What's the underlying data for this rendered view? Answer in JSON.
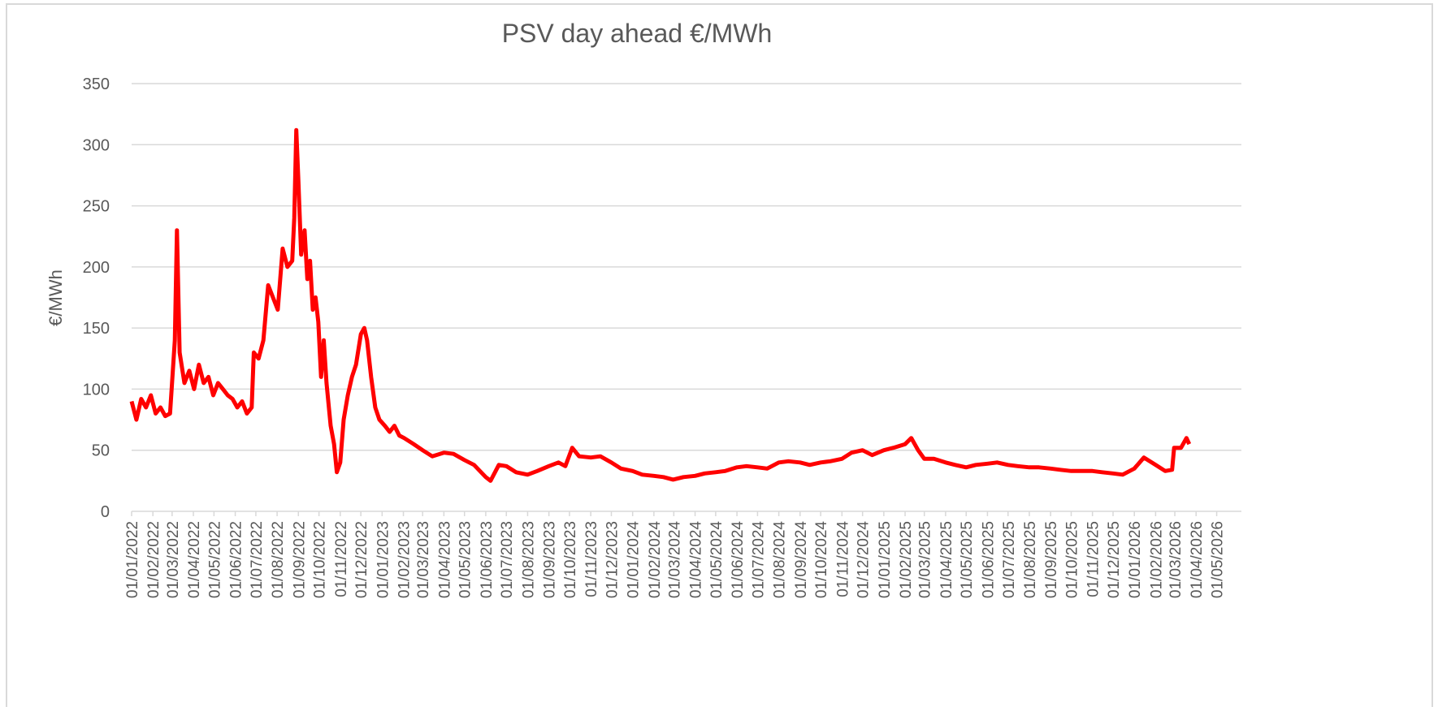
{
  "chart_data": {
    "type": "line",
    "title": "PSV day ahead €/MWh",
    "y_label": "€/MWh",
    "x": [
      "01/01/2022",
      "08/01/2022",
      "15/01/2022",
      "22/01/2022",
      "29/01/2022",
      "05/02/2022",
      "12/02/2022",
      "19/02/2022",
      "26/02/2022",
      "05/03/2022",
      "08/03/2022",
      "12/03/2022",
      "19/03/2022",
      "26/03/2022",
      "02/04/2022",
      "09/04/2022",
      "16/04/2022",
      "23/04/2022",
      "30/04/2022",
      "07/05/2022",
      "14/05/2022",
      "21/05/2022",
      "28/05/2022",
      "04/06/2022",
      "11/06/2022",
      "18/06/2022",
      "25/06/2022",
      "28/06/2022",
      "05/07/2022",
      "12/07/2022",
      "19/07/2022",
      "26/07/2022",
      "02/08/2022",
      "09/08/2022",
      "16/08/2022",
      "23/08/2022",
      "26/08/2022",
      "29/08/2022",
      "01/09/2022",
      "05/09/2022",
      "10/09/2022",
      "14/09/2022",
      "18/09/2022",
      "22/09/2022",
      "26/09/2022",
      "30/09/2022",
      "04/10/2022",
      "08/10/2022",
      "12/10/2022",
      "18/10/2022",
      "23/10/2022",
      "27/10/2022",
      "01/11/2022",
      "06/11/2022",
      "12/11/2022",
      "18/11/2022",
      "24/11/2022",
      "01/12/2022",
      "06/12/2022",
      "10/12/2022",
      "16/12/2022",
      "22/12/2022",
      "28/12/2022",
      "05/01/2023",
      "12/01/2023",
      "19/01/2023",
      "26/01/2023",
      "02/02/2023",
      "16/02/2023",
      "01/03/2023",
      "15/03/2023",
      "01/04/2023",
      "15/04/2023",
      "01/05/2023",
      "15/05/2023",
      "01/06/2023",
      "08/06/2023",
      "20/06/2023",
      "01/07/2023",
      "15/07/2023",
      "01/08/2023",
      "15/08/2023",
      "01/09/2023",
      "15/09/2023",
      "25/09/2023",
      "05/10/2023",
      "15/10/2023",
      "01/11/2023",
      "15/11/2023",
      "01/12/2023",
      "15/12/2023",
      "01/01/2024",
      "15/01/2024",
      "01/02/2024",
      "15/02/2024",
      "29/02/2024",
      "15/03/2024",
      "01/04/2024",
      "15/04/2024",
      "01/05/2024",
      "15/05/2024",
      "01/06/2024",
      "15/06/2024",
      "01/07/2024",
      "15/07/2024",
      "01/08/2024",
      "15/08/2024",
      "01/09/2024",
      "15/09/2024",
      "01/10/2024",
      "15/10/2024",
      "01/11/2024",
      "15/11/2024",
      "01/12/2024",
      "15/12/2024",
      "01/01/2025",
      "15/01/2025",
      "01/02/2025",
      "10/02/2025",
      "20/02/2025",
      "01/03/2025",
      "15/03/2025",
      "01/04/2025",
      "15/04/2025",
      "01/05/2025",
      "15/05/2025",
      "01/06/2025",
      "15/06/2025",
      "01/07/2025",
      "15/07/2025",
      "01/08/2025",
      "15/08/2025",
      "01/09/2025",
      "15/09/2025",
      "01/10/2025",
      "15/10/2025",
      "01/11/2025",
      "15/11/2025",
      "01/12/2025",
      "15/12/2025",
      "01/01/2026",
      "15/01/2026",
      "01/02/2026",
      "15/02/2026",
      "25/02/2026",
      "28/02/2026",
      "10/03/2026",
      "18/03/2026",
      "22/03/2026"
    ],
    "series": [
      {
        "name": "PSV day ahead",
        "color": "#ff0000",
        "values": [
          90,
          75,
          92,
          85,
          95,
          80,
          85,
          78,
          80,
          140,
          230,
          130,
          105,
          115,
          100,
          120,
          105,
          110,
          95,
          105,
          100,
          95,
          92,
          85,
          90,
          80,
          85,
          130,
          125,
          140,
          185,
          175,
          165,
          215,
          200,
          205,
          240,
          312,
          270,
          210,
          230,
          190,
          205,
          165,
          175,
          155,
          110,
          140,
          105,
          70,
          55,
          32,
          40,
          75,
          95,
          110,
          120,
          145,
          150,
          140,
          110,
          85,
          75,
          70,
          65,
          70,
          62,
          60,
          55,
          50,
          45,
          48,
          47,
          42,
          38,
          28,
          25,
          38,
          37,
          32,
          30,
          33,
          37,
          40,
          37,
          52,
          45,
          44,
          45,
          40,
          35,
          33,
          30,
          29,
          28,
          26,
          28,
          29,
          31,
          32,
          33,
          36,
          37,
          36,
          35,
          40,
          41,
          40,
          38,
          40,
          41,
          43,
          48,
          50,
          46,
          50,
          52,
          55,
          60,
          50,
          43,
          43,
          40,
          38,
          36,
          38,
          39,
          40,
          38,
          37,
          36,
          36,
          35,
          34,
          33,
          33,
          33,
          32,
          31,
          30,
          35,
          44,
          38,
          33,
          34,
          52,
          52,
          60,
          55
        ]
      }
    ],
    "xlim": [
      "01/01/2022",
      "06/06/2026"
    ],
    "xticks": [
      "01/01/2022",
      "01/02/2022",
      "01/03/2022",
      "01/04/2022",
      "01/05/2022",
      "01/06/2022",
      "01/07/2022",
      "01/08/2022",
      "01/09/2022",
      "01/10/2022",
      "01/11/2022",
      "01/12/2022",
      "01/01/2023",
      "01/02/2023",
      "01/03/2023",
      "01/04/2023",
      "01/05/2023",
      "01/06/2023",
      "01/07/2023",
      "01/08/2023",
      "01/09/2023",
      "01/10/2023",
      "01/11/2023",
      "01/12/2023",
      "01/01/2024",
      "01/02/2024",
      "01/03/2024",
      "01/04/2024",
      "01/05/2024",
      "01/06/2024",
      "01/07/2024",
      "01/08/2024",
      "01/09/2024",
      "01/10/2024",
      "01/11/2024",
      "01/12/2024",
      "01/01/2025",
      "01/02/2025",
      "01/03/2025",
      "01/04/2025",
      "01/05/2025",
      "01/06/2025",
      "01/07/2025",
      "01/08/2025",
      "01/09/2025",
      "01/10/2025",
      "01/11/2025",
      "01/12/2025",
      "01/01/2026",
      "01/02/2026",
      "01/03/2026",
      "01/04/2026",
      "01/05/2026"
    ],
    "ylim": [
      0,
      350
    ],
    "yticks": [
      0,
      50,
      100,
      150,
      200,
      250,
      300,
      350
    ],
    "grid": true
  }
}
